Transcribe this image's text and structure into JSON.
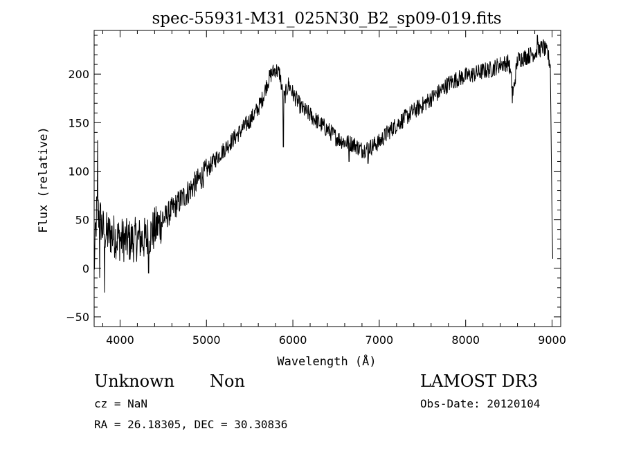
{
  "chart_data": {
    "type": "line",
    "title": "spec-55931-M31_025N30_B2_sp09-019.fits",
    "xlabel": "Wavelength (Å)",
    "ylabel": "Flux (relative)",
    "xlim": [
      3700,
      9100
    ],
    "ylim": [
      -60,
      245
    ],
    "x_ticks": [
      4000,
      5000,
      6000,
      7000,
      8000,
      9000
    ],
    "x_tick_labels": [
      "4000",
      "5000",
      "6000",
      "7000",
      "8000",
      "9000"
    ],
    "y_ticks": [
      -50,
      0,
      50,
      100,
      150,
      200
    ],
    "y_tick_labels": [
      "−50",
      "0",
      "50",
      "100",
      "150",
      "200"
    ],
    "grid": false,
    "series": [
      {
        "name": "Flux",
        "noise": 9,
        "x": [
          3700,
          3730,
          3760,
          3800,
          3850,
          3900,
          4000,
          4100,
          4200,
          4300,
          4400,
          4500,
          4600,
          4700,
          4800,
          4900,
          5000,
          5100,
          5200,
          5300,
          5400,
          5500,
          5600,
          5650,
          5700,
          5750,
          5800,
          5850,
          5880,
          5900,
          5950,
          6000,
          6100,
          6200,
          6300,
          6400,
          6500,
          6600,
          6700,
          6800,
          6900,
          7000,
          7100,
          7200,
          7300,
          7400,
          7500,
          7600,
          7700,
          7800,
          7900,
          8000,
          8100,
          8200,
          8300,
          8400,
          8500,
          8550,
          8600,
          8700,
          8800,
          8900,
          8950,
          8980,
          9000,
          9010
        ],
        "y": [
          0,
          60,
          55,
          40,
          35,
          35,
          30,
          28,
          30,
          30,
          40,
          50,
          60,
          70,
          80,
          90,
          100,
          112,
          122,
          132,
          142,
          152,
          165,
          175,
          190,
          200,
          205,
          200,
          180,
          175,
          190,
          180,
          165,
          158,
          150,
          143,
          135,
          130,
          128,
          122,
          125,
          130,
          140,
          148,
          155,
          162,
          168,
          175,
          182,
          190,
          195,
          198,
          200,
          203,
          205,
          210,
          212,
          180,
          215,
          218,
          222,
          228,
          220,
          210,
          50,
          0
        ],
        "spikes": [
          [
            3740,
            132
          ],
          [
            3765,
            -10
          ],
          [
            3820,
            -25
          ],
          [
            4330,
            -5
          ],
          [
            5890,
            125
          ],
          [
            6650,
            110
          ],
          [
            6870,
            108
          ],
          [
            8540,
            170
          ],
          [
            8830,
            240
          ]
        ]
      }
    ]
  },
  "annotations": {
    "object_class": "Unknown",
    "object_subclass": "Non",
    "redshift_text": "cz = NaN",
    "coords_text": "RA =  26.18305, DEC =  30.30836",
    "survey": "LAMOST DR3",
    "obs_date_text": "Obs-Date: 20120104"
  }
}
